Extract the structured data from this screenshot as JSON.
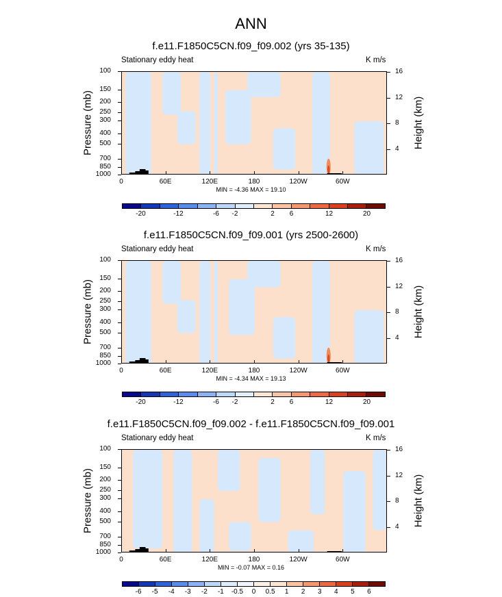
{
  "figure": {
    "title": "ANN"
  },
  "chart_data": [
    {
      "type": "heatmap",
      "title": "f.e11.F1850C5CN.f09_f09.002 (yrs 35-135)",
      "subtitle_left": "Stationary eddy heat",
      "units": "K m/s",
      "xlabel": "",
      "ylabel": "Pressure (mb)",
      "ylabel_right": "Height (km)",
      "xticks": [
        "0",
        "60E",
        "120E",
        "180",
        "120W",
        "60W"
      ],
      "xtick_lon": [
        0,
        60,
        120,
        180,
        240,
        300
      ],
      "xlim": [
        0,
        360
      ],
      "yticks": [
        "100",
        "150",
        "200",
        "250",
        "300",
        "400",
        "500",
        "700",
        "850",
        "1000"
      ],
      "ytick_values": [
        100,
        150,
        200,
        250,
        300,
        400,
        500,
        700,
        850,
        1000
      ],
      "ylim": [
        1000,
        100
      ],
      "height_ticks": [
        "16",
        "12",
        "8",
        "4"
      ],
      "height_values": [
        16,
        12,
        8,
        4
      ],
      "minmax_text": "MIN = -4.36   MAX = 19.10",
      "min": -4.36,
      "max": 19.1,
      "colorbar_labels": [
        "-20",
        "-12",
        "-6",
        "-2",
        "2",
        "6",
        "12",
        "20"
      ],
      "neg_regions": [
        {
          "lon": [
            5,
            40
          ],
          "p": [
            100,
            1000
          ]
        },
        {
          "lon": [
            55,
            80
          ],
          "p": [
            100,
            260
          ]
        },
        {
          "lon": [
            75,
            100
          ],
          "p": [
            240,
            500
          ]
        },
        {
          "lon": [
            105,
            120
          ],
          "p": [
            100,
            1000
          ]
        },
        {
          "lon": [
            125,
            130
          ],
          "p": [
            100,
            1000
          ]
        },
        {
          "lon": [
            140,
            175
          ],
          "p": [
            150,
            500
          ]
        },
        {
          "lon": [
            170,
            215
          ],
          "p": [
            100,
            175
          ]
        },
        {
          "lon": [
            205,
            235
          ],
          "p": [
            350,
            880
          ]
        },
        {
          "lon": [
            258,
            282
          ],
          "p": [
            100,
            1000
          ]
        },
        {
          "lon": [
            315,
            355
          ],
          "p": [
            300,
            1000
          ]
        }
      ],
      "hot_spots": [
        {
          "lon": 280,
          "p": 780,
          "value": 19.1
        }
      ]
    },
    {
      "type": "heatmap",
      "title": "f.e11.F1850C5CN.f09_f09.001 (yrs 2500-2600)",
      "subtitle_left": "Stationary eddy heat",
      "units": "K m/s",
      "xlabel": "",
      "ylabel": "Pressure (mb)",
      "ylabel_right": "Height (km)",
      "xticks": [
        "0",
        "60E",
        "120E",
        "180",
        "120W",
        "60W"
      ],
      "xtick_lon": [
        0,
        60,
        120,
        180,
        240,
        300
      ],
      "xlim": [
        0,
        360
      ],
      "yticks": [
        "100",
        "150",
        "200",
        "250",
        "300",
        "400",
        "500",
        "700",
        "850",
        "1000"
      ],
      "ytick_values": [
        100,
        150,
        200,
        250,
        300,
        400,
        500,
        700,
        850,
        1000
      ],
      "ylim": [
        1000,
        100
      ],
      "height_ticks": [
        "16",
        "12",
        "8",
        "4"
      ],
      "height_values": [
        16,
        12,
        8,
        4
      ],
      "minmax_text": "MIN = -4.34   MAX = 19.13",
      "min": -4.34,
      "max": 19.13,
      "colorbar_labels": [
        "-20",
        "-12",
        "-6",
        "-2",
        "2",
        "6",
        "12",
        "20"
      ],
      "neg_regions": [
        {
          "lon": [
            5,
            40
          ],
          "p": [
            100,
            1000
          ]
        },
        {
          "lon": [
            55,
            80
          ],
          "p": [
            100,
            260
          ]
        },
        {
          "lon": [
            75,
            100
          ],
          "p": [
            240,
            500
          ]
        },
        {
          "lon": [
            105,
            120
          ],
          "p": [
            100,
            1000
          ]
        },
        {
          "lon": [
            125,
            130
          ],
          "p": [
            100,
            1000
          ]
        },
        {
          "lon": [
            145,
            180
          ],
          "p": [
            150,
            520
          ]
        },
        {
          "lon": [
            170,
            215
          ],
          "p": [
            100,
            180
          ]
        },
        {
          "lon": [
            205,
            235
          ],
          "p": [
            350,
            880
          ]
        },
        {
          "lon": [
            258,
            282
          ],
          "p": [
            100,
            1000
          ]
        },
        {
          "lon": [
            315,
            355
          ],
          "p": [
            300,
            1000
          ]
        }
      ],
      "hot_spots": [
        {
          "lon": 280,
          "p": 780,
          "value": 19.13
        }
      ]
    },
    {
      "type": "heatmap",
      "title": "f.e11.F1850C5CN.f09_f09.002 - f.e11.F1850C5CN.f09_f09.001",
      "subtitle_left": "Stationary eddy heat",
      "units": "K m/s",
      "xlabel": "",
      "ylabel": "Pressure (mb)",
      "ylabel_right": "Height (km)",
      "xticks": [
        "0",
        "60E",
        "120E",
        "180",
        "120W",
        "60W"
      ],
      "xtick_lon": [
        0,
        60,
        120,
        180,
        240,
        300
      ],
      "xlim": [
        0,
        360
      ],
      "yticks": [
        "100",
        "150",
        "200",
        "250",
        "300",
        "400",
        "500",
        "700",
        "850",
        "1000"
      ],
      "ytick_values": [
        100,
        150,
        200,
        250,
        300,
        400,
        500,
        700,
        850,
        1000
      ],
      "ylim": [
        1000,
        100
      ],
      "height_ticks": [
        "16",
        "12",
        "8",
        "4"
      ],
      "height_values": [
        16,
        12,
        8,
        4
      ],
      "minmax_text": "MIN = -0.07   MAX =  0.16",
      "min": -0.07,
      "max": 0.16,
      "colorbar_labels": [
        "-6",
        "-5",
        "-4",
        "-3",
        "-2",
        "-1",
        "-0.5",
        "0",
        "0.5",
        "1",
        "2",
        "3",
        "4",
        "5",
        "6"
      ],
      "neg_regions": [
        {
          "lon": [
            15,
            55
          ],
          "p": [
            100,
            900
          ]
        },
        {
          "lon": [
            70,
            95
          ],
          "p": [
            100,
            1000
          ]
        },
        {
          "lon": [
            105,
            125
          ],
          "p": [
            300,
            1000
          ]
        },
        {
          "lon": [
            130,
            160
          ],
          "p": [
            100,
            250
          ]
        },
        {
          "lon": [
            145,
            175
          ],
          "p": [
            500,
            950
          ]
        },
        {
          "lon": [
            185,
            215
          ],
          "p": [
            120,
            500
          ]
        },
        {
          "lon": [
            225,
            260
          ],
          "p": [
            600,
            1000
          ]
        },
        {
          "lon": [
            255,
            275
          ],
          "p": [
            100,
            420
          ]
        },
        {
          "lon": [
            300,
            330
          ],
          "p": [
            160,
            1000
          ]
        },
        {
          "lon": [
            340,
            358
          ],
          "p": [
            100,
            600
          ]
        }
      ],
      "hot_spots": []
    }
  ],
  "colors": {
    "positive_light": "#fde0cc",
    "negative_light": "#d6e8fb",
    "colorbar_9": [
      "#08088c",
      "#1438b4",
      "#2d64d8",
      "#5a8cec",
      "#8cb4f4",
      "#bcd8fa",
      "#e0eefd",
      "#fde6d4",
      "#fac4a4",
      "#f49870",
      "#ec6a42",
      "#d8401e",
      "#a81e0e",
      "#6e0c04"
    ],
    "colorbar_15": [
      "#08088c",
      "#1438b4",
      "#2d64d8",
      "#5a8cec",
      "#8cb4f4",
      "#bcd8fa",
      "#e0eefd",
      "#f2f6fc",
      "#fdf2ea",
      "#fde6d4",
      "#fac4a4",
      "#f49870",
      "#ec6a42",
      "#d8401e",
      "#a81e0e",
      "#6e0c04"
    ]
  }
}
